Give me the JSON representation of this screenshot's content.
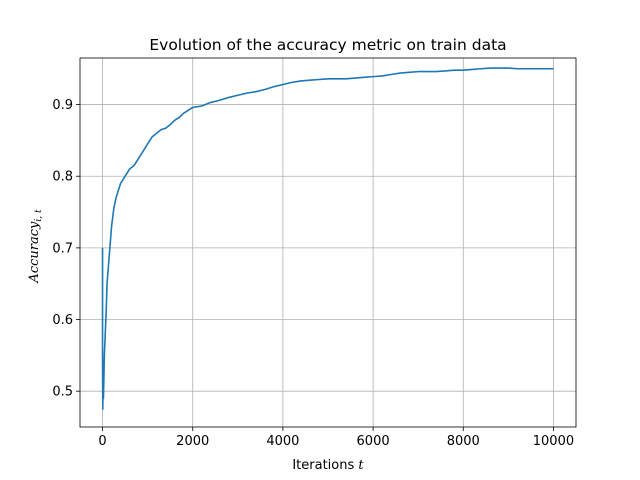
{
  "chart_data": {
    "type": "line",
    "title": "Evolution of the accuracy metric on train data",
    "xlabel": "Iterations ",
    "xlabel_math": "t",
    "ylabel": "Accuracy",
    "ylabel_sub": "i, t",
    "xlim": [
      -500,
      10500
    ],
    "ylim": [
      0.45,
      0.965
    ],
    "xticks": [
      0,
      2000,
      4000,
      6000,
      8000,
      10000
    ],
    "xtick_labels": [
      "0",
      "2000",
      "4000",
      "6000",
      "8000",
      "10000"
    ],
    "yticks": [
      0.5,
      0.6,
      0.7,
      0.8,
      0.9
    ],
    "ytick_labels": [
      "0.5",
      "0.6",
      "0.7",
      "0.8",
      "0.9"
    ],
    "grid": true,
    "series": [
      {
        "color": "#1f77b4",
        "x": [
          0,
          0,
          5,
          10,
          20,
          30,
          40,
          60,
          80,
          100,
          150,
          200,
          250,
          300,
          350,
          400,
          500,
          600,
          700,
          800,
          900,
          1000,
          1100,
          1200,
          1300,
          1400,
          1500,
          1600,
          1700,
          1800,
          1900,
          2000,
          2200,
          2400,
          2600,
          2800,
          3000,
          3200,
          3400,
          3600,
          3800,
          4000,
          4200,
          4400,
          4600,
          4800,
          5000,
          5200,
          5400,
          5600,
          5800,
          6000,
          6200,
          6400,
          6600,
          6800,
          7000,
          7200,
          7400,
          7600,
          7800,
          8000,
          8200,
          8400,
          8600,
          8800,
          9000,
          9200,
          9400,
          9600,
          9800,
          10000
        ],
        "y": [
          0.7,
          0.55,
          0.475,
          0.5,
          0.49,
          0.52,
          0.55,
          0.58,
          0.61,
          0.65,
          0.69,
          0.73,
          0.755,
          0.77,
          0.78,
          0.79,
          0.8,
          0.81,
          0.815,
          0.825,
          0.835,
          0.845,
          0.855,
          0.86,
          0.865,
          0.867,
          0.872,
          0.878,
          0.882,
          0.888,
          0.892,
          0.896,
          0.898,
          0.903,
          0.906,
          0.91,
          0.913,
          0.916,
          0.918,
          0.921,
          0.925,
          0.928,
          0.931,
          0.933,
          0.934,
          0.935,
          0.936,
          0.936,
          0.936,
          0.937,
          0.938,
          0.939,
          0.94,
          0.942,
          0.944,
          0.945,
          0.946,
          0.946,
          0.946,
          0.947,
          0.948,
          0.948,
          0.949,
          0.95,
          0.951,
          0.951,
          0.951,
          0.95,
          0.95,
          0.95,
          0.95,
          0.95
        ]
      }
    ]
  }
}
